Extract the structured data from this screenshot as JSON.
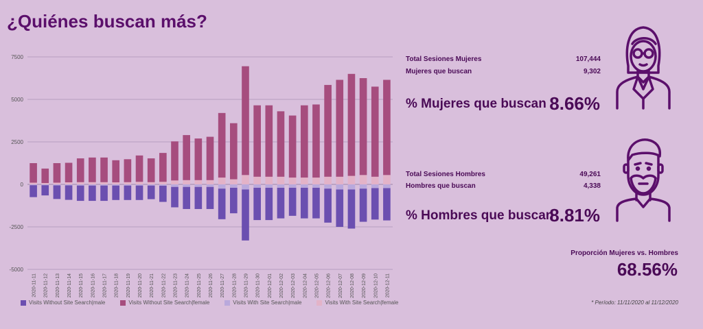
{
  "title": "¿Quiénes buscan más?",
  "colors": {
    "background": "#d9bfdc",
    "male_without": "#6b4fb0",
    "female_without": "#a64d7e",
    "male_with": "#b9a9dc",
    "female_with": "#e3b3c8",
    "accent": "#5b0f6b"
  },
  "chart_data": {
    "type": "bar",
    "stacked": true,
    "categories": [
      "2020-11-11",
      "2020-11-12",
      "2020-11-13",
      "2020-11-14",
      "2020-11-15",
      "2020-11-16",
      "2020-11-17",
      "2020-11-18",
      "2020-11-19",
      "2020-11-20",
      "2020-11-21",
      "2020-11-22",
      "2020-11-23",
      "2020-11-24",
      "2020-11-25",
      "2020-11-26",
      "2020-11-27",
      "2020-11-28",
      "2020-11-29",
      "2020-11-30",
      "2020-12-01",
      "2020-12-02",
      "2020-12-03",
      "2020-12-04",
      "2020-12-05",
      "2020-12-06",
      "2020-12-07",
      "2020-12-08",
      "2020-12-09",
      "2020-12-10",
      "2020-12-11"
    ],
    "series": [
      {
        "name": "Visits Without Site Search|male",
        "values": [
          -700,
          -600,
          -800,
          -850,
          -900,
          -900,
          -900,
          -850,
          -850,
          -850,
          -800,
          -950,
          -1200,
          -1300,
          -1300,
          -1300,
          -1800,
          -1500,
          -3000,
          -1900,
          -1900,
          -1800,
          -1650,
          -1800,
          -1800,
          -2000,
          -2200,
          -2300,
          -1950,
          -1850,
          -1900
        ]
      },
      {
        "name": "Visits Without Site Search|female",
        "values": [
          1150,
          850,
          1150,
          1150,
          1400,
          1450,
          1450,
          1300,
          1350,
          1550,
          1400,
          1700,
          2300,
          2650,
          2450,
          2550,
          3800,
          3300,
          6400,
          4200,
          4200,
          3850,
          3650,
          4250,
          4300,
          5400,
          5700,
          6000,
          5700,
          5300,
          5600
        ]
      },
      {
        "name": "Visits With Site Search|male",
        "values": [
          -50,
          -50,
          -60,
          -60,
          -70,
          -70,
          -70,
          -70,
          -70,
          -70,
          -70,
          -80,
          -150,
          -150,
          -150,
          -150,
          -250,
          -200,
          -300,
          -200,
          -200,
          -200,
          -200,
          -200,
          -200,
          -250,
          -300,
          -300,
          -250,
          -220,
          -220
        ]
      },
      {
        "name": "Visits With Site Search|female",
        "values": [
          100,
          80,
          100,
          120,
          130,
          130,
          130,
          120,
          130,
          150,
          130,
          150,
          230,
          250,
          250,
          250,
          400,
          300,
          550,
          450,
          450,
          450,
          400,
          400,
          400,
          450,
          450,
          500,
          550,
          450,
          550
        ]
      }
    ],
    "ylim": [
      -5000,
      7500
    ],
    "yticks": [
      7500,
      5000,
      2500,
      0,
      -2500,
      -5000
    ],
    "ytick_labels": [
      "7500",
      "5000",
      "2500",
      "0",
      "-2500",
      "-5000"
    ],
    "grid": true,
    "legend_position": "bottom-left"
  },
  "kpis": {
    "women_sessions_label": "Total Sesiones Mujeres",
    "women_sessions_value": "107,444",
    "women_search_label": "Mujeres que buscan",
    "women_search_value": "9,302",
    "women_pct_label": "% Mujeres que buscan",
    "women_pct_value": "8.66%",
    "men_sessions_label": "Total Sesiones Hombres",
    "men_sessions_value": "49,261",
    "men_search_label": "Hombres que buscan",
    "men_search_value": "4,338",
    "men_pct_label": "% Hombres que buscan",
    "men_pct_value": "8.81%",
    "ratio_label": "Proporción Mujeres vs. Hombres",
    "ratio_value": "68.56%"
  },
  "period_note": "* Período: 11/11/2020 al 11/12/2020",
  "icons": {
    "female": "woman-avatar-icon",
    "male": "man-avatar-icon"
  }
}
